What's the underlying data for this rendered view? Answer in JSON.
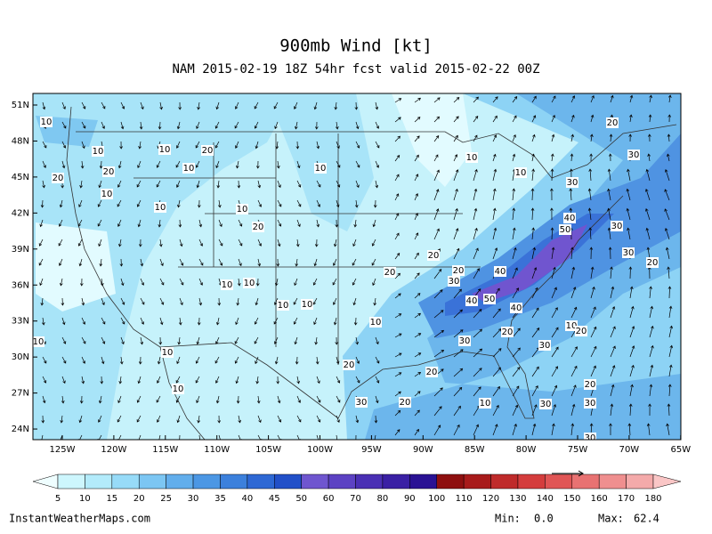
{
  "header": {
    "title": "900mb Wind [kt]",
    "subtitle": "NAM 2015-02-19 18Z 54hr fcst valid 2015-02-22 00Z"
  },
  "map": {
    "lat_labels": [
      "51N",
      "48N",
      "45N",
      "42N",
      "39N",
      "36N",
      "33N",
      "30N",
      "27N",
      "24N"
    ],
    "lon_labels": [
      "125W",
      "120W",
      "115W",
      "110W",
      "105W",
      "100W",
      "95W",
      "90W",
      "85W",
      "80W",
      "75W",
      "70W",
      "65W"
    ],
    "contour_labels": [
      10,
      10,
      20,
      20,
      10,
      10,
      10,
      20,
      10,
      10,
      20,
      10,
      10,
      10,
      10,
      10,
      10,
      10,
      10,
      20,
      10,
      20,
      10,
      20,
      30,
      30,
      40,
      50,
      40,
      30,
      20,
      20,
      30,
      40,
      50,
      40,
      30,
      20,
      10,
      20,
      30,
      20,
      10,
      20,
      30,
      30,
      20,
      30,
      20,
      30,
      10,
      30
    ]
  },
  "colorbar": {
    "ticks": [
      5,
      10,
      15,
      20,
      25,
      30,
      35,
      40,
      45,
      50,
      60,
      70,
      80,
      90,
      100,
      110,
      120,
      130,
      140,
      150,
      160,
      170,
      180
    ]
  },
  "footer": {
    "site": "InstantWeatherMaps.com",
    "min_label": "Min:",
    "min_value": "0.0",
    "max_label": "Max:",
    "max_value": "62.4"
  }
}
